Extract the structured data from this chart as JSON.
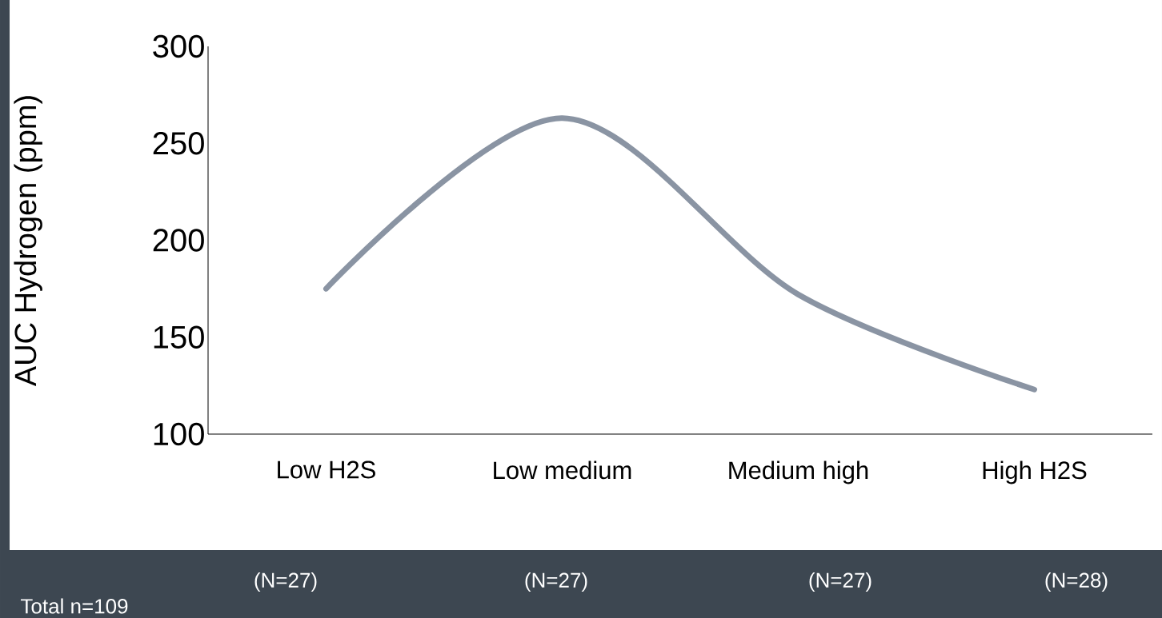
{
  "chart_data": {
    "type": "line",
    "ylabel": "AUC Hydrogen (ppm)",
    "categories": [
      "Low H2S",
      "Low medium",
      "Medium high",
      "High H2S"
    ],
    "series": [
      {
        "color": "#8a94a3",
        "values": [
          175,
          263,
          172,
          123
        ]
      }
    ],
    "ylim": [
      100,
      300
    ],
    "yticks": [
      100,
      150,
      200,
      250,
      300
    ],
    "grid": false,
    "marker": "none",
    "line_style": "solid",
    "annotations": [
      "(N=27)",
      "(N=27)",
      "(N=27)",
      "(N=28)",
      "Total n=109"
    ]
  }
}
